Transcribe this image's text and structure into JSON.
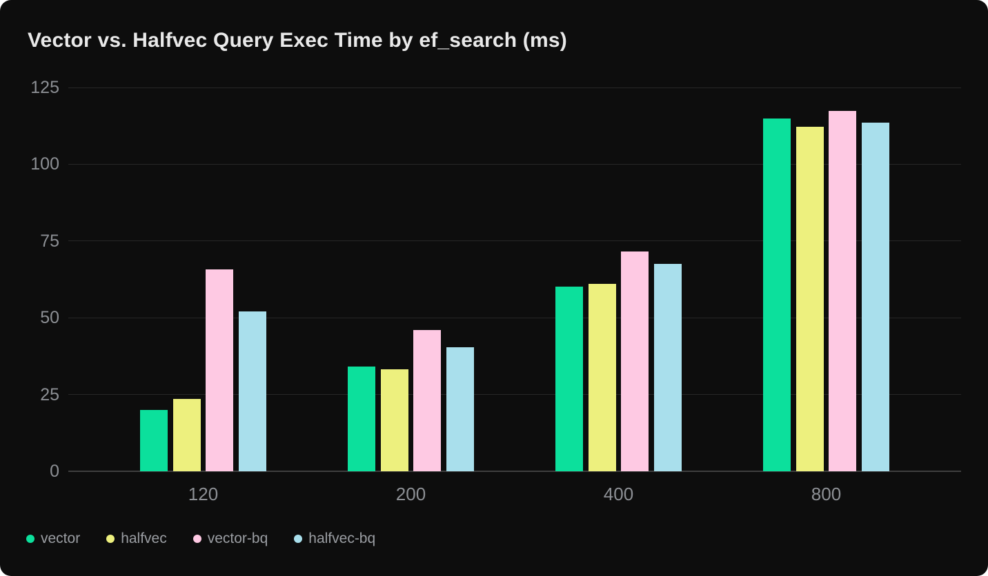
{
  "card": {
    "background": "#0d0d0d",
    "page_background": "#ffffff"
  },
  "colors": {
    "gridline": "#272727",
    "zero_axis": "#3f3f3f",
    "title_text": "#e9e9e9",
    "tick_text": "#8d9095",
    "legend_text": "#9b9ea3"
  },
  "chart_data": {
    "type": "bar",
    "title": "Vector vs. Halfvec Query Exec Time by ef_search (ms)",
    "categories": [
      "120",
      "200",
      "400",
      "800"
    ],
    "series": [
      {
        "name": "vector",
        "color": "#0ce09c",
        "values": [
          20.0,
          34.1,
          60.1,
          114.9
        ]
      },
      {
        "name": "halfvec",
        "color": "#edf07e",
        "values": [
          23.5,
          33.2,
          61.0,
          112.1
        ]
      },
      {
        "name": "vector-bq",
        "color": "#fec9e3",
        "values": [
          65.7,
          46.1,
          71.5,
          117.3
        ]
      },
      {
        "name": "halfvec-bq",
        "color": "#a9dfec",
        "values": [
          52.1,
          40.5,
          67.6,
          113.5
        ]
      }
    ],
    "xlabel": "",
    "ylabel": "",
    "ylim": [
      0,
      125
    ],
    "yticks": [
      0,
      25,
      50,
      75,
      100,
      125
    ],
    "grid": true,
    "legend_position": "bottom-left"
  }
}
